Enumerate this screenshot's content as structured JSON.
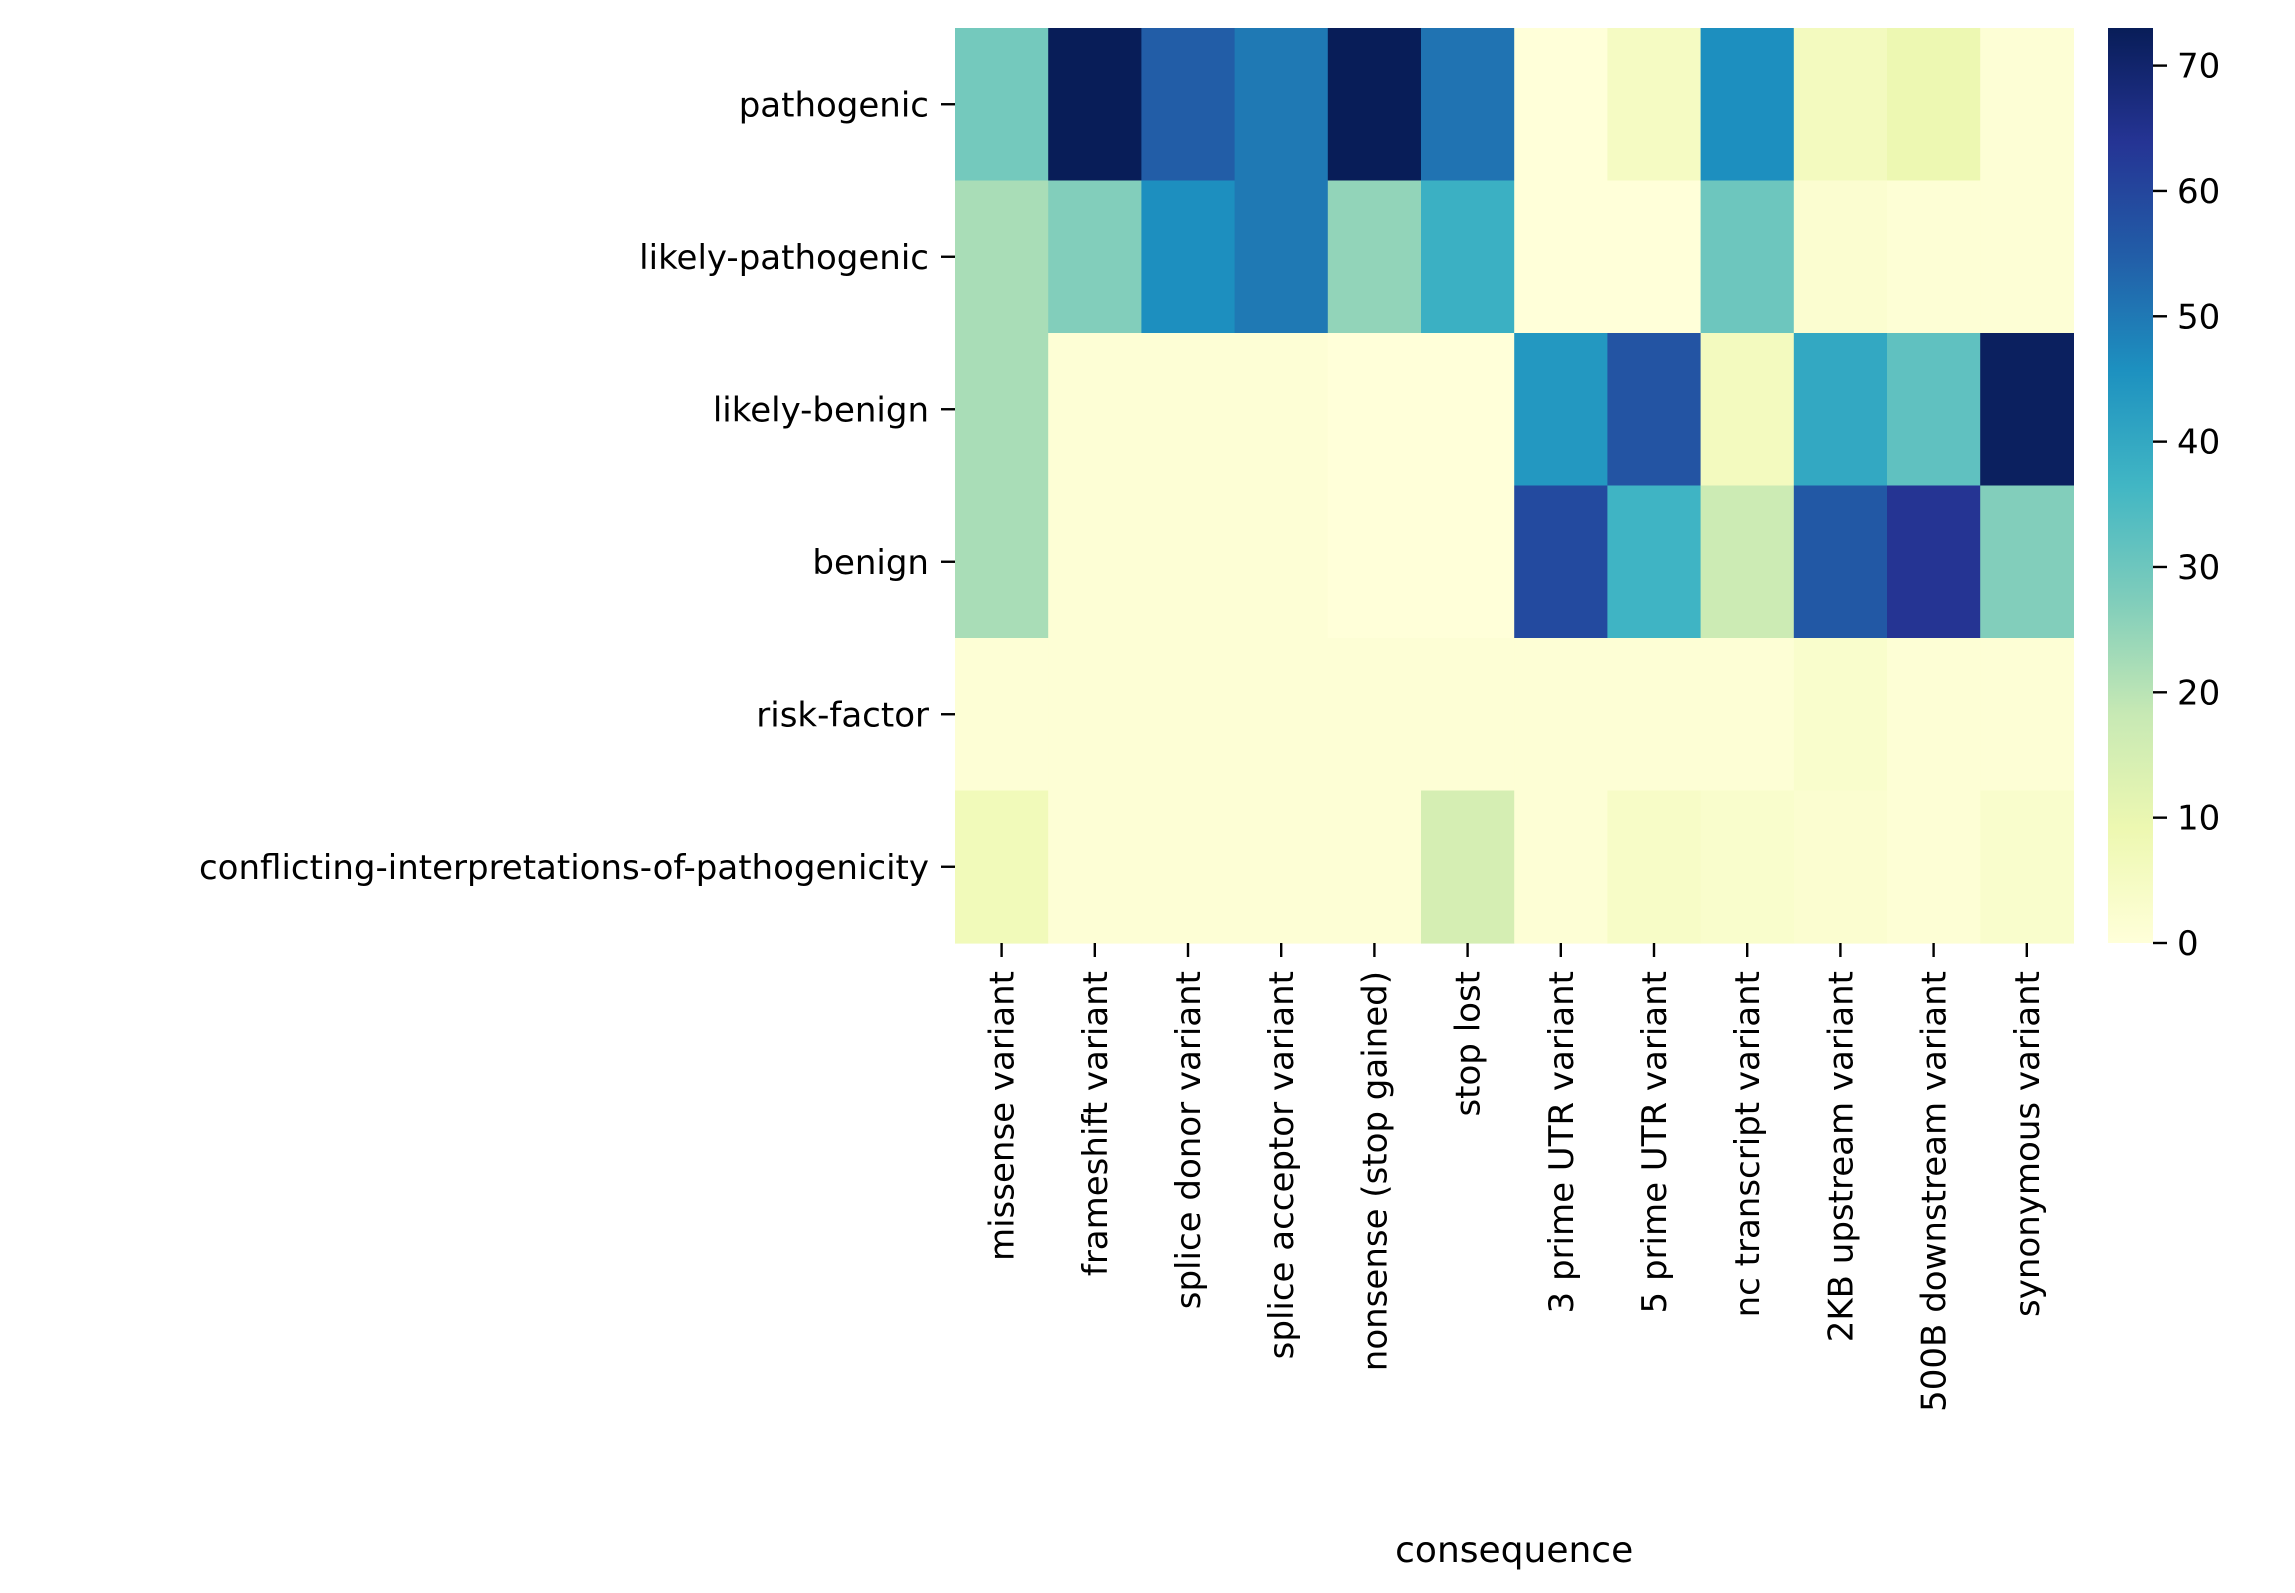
{
  "chart_data": {
    "type": "heatmap",
    "title": "",
    "xlabel": "consequence",
    "ylabel": "",
    "x_categories": [
      "missense variant",
      "frameshift variant",
      "splice donor variant",
      "splice acceptor variant",
      "nonsense (stop gained)",
      "stop lost",
      "3 prime UTR variant",
      "5 prime UTR variant",
      "nc transcript variant",
      "2KB upstream variant",
      "500B downstream variant",
      "synonymous variant"
    ],
    "y_categories": [
      "pathogenic",
      "likely-pathogenic",
      "likely-benign",
      "benign",
      "risk-factor",
      "conflicting-interpretations-of-pathogenicity"
    ],
    "values": [
      [
        29,
        73,
        55,
        50,
        73,
        51,
        0,
        5,
        46,
        6,
        9,
        1
      ],
      [
        22,
        27,
        46,
        50,
        25,
        38,
        0,
        0,
        30,
        2,
        1,
        1
      ],
      [
        22,
        1,
        1,
        1,
        0,
        0,
        44,
        57,
        6,
        40,
        32,
        72
      ],
      [
        22,
        1,
        1,
        1,
        0,
        0,
        59,
        37,
        17,
        56,
        64,
        27
      ],
      [
        1,
        1,
        1,
        1,
        1,
        1,
        1,
        1,
        1,
        3,
        1,
        1
      ],
      [
        7,
        1,
        1,
        1,
        1,
        15,
        1,
        4,
        3,
        2,
        1,
        3
      ]
    ],
    "colorbar": {
      "colormap": "YlGnBu",
      "vmin": 0,
      "vmax": 73,
      "ticks": [
        "0",
        "10",
        "20",
        "30",
        "40",
        "50",
        "60",
        "70"
      ],
      "tick_values": [
        0,
        10,
        20,
        30,
        40,
        50,
        60,
        70
      ]
    },
    "colormap_stops": [
      "#ffffd9",
      "#edf8b1",
      "#c7e9b4",
      "#7fcdbb",
      "#41b6c4",
      "#1d91c0",
      "#225ea8",
      "#253494",
      "#081d58"
    ]
  }
}
